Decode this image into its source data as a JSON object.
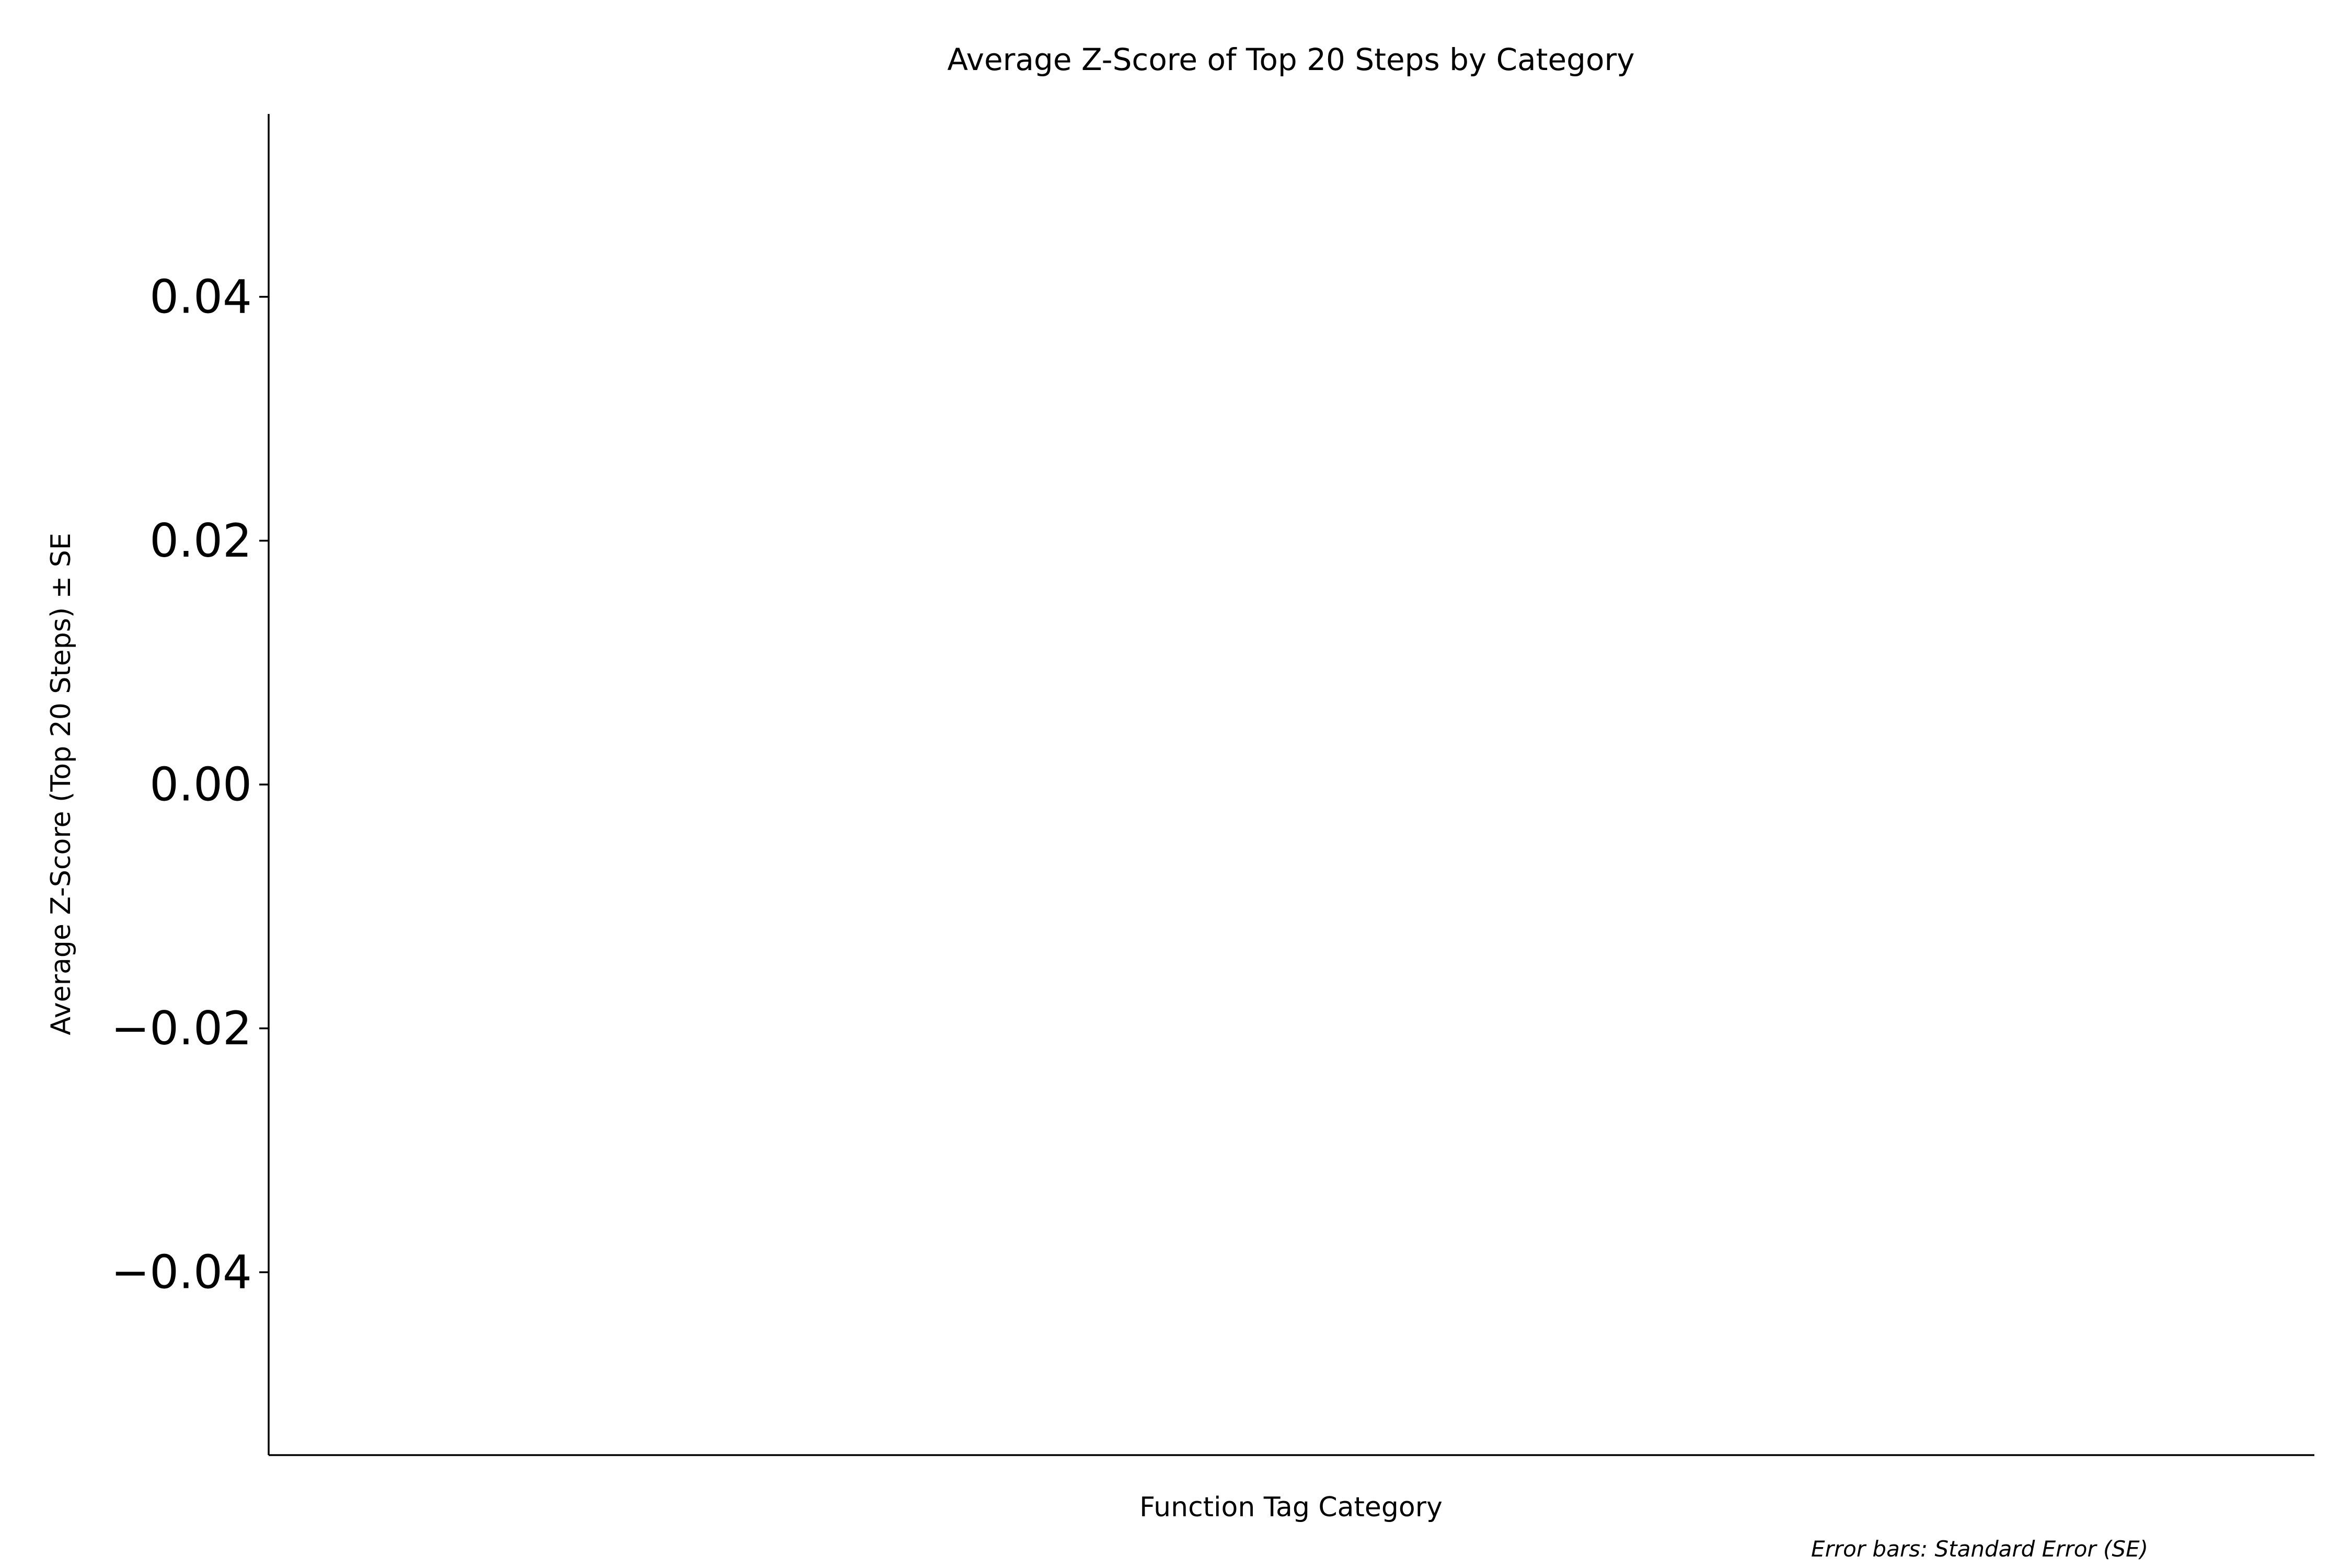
{
  "chart_data": {
    "type": "bar",
    "title": "Average Z-Score of Top 20 Steps by Category",
    "xlabel": "Function Tag Category",
    "ylabel": "Average Z-Score (Top 20 Steps) ± SE",
    "categories": [],
    "values": [],
    "ylim": [
      -0.055,
      0.055
    ],
    "yticks": [
      {
        "value": 0.04,
        "label": "0.04"
      },
      {
        "value": 0.02,
        "label": "0.02"
      },
      {
        "value": 0.0,
        "label": "0.00"
      },
      {
        "value": -0.02,
        "label": "−0.02"
      },
      {
        "value": -0.04,
        "label": "−0.04"
      }
    ],
    "grid": false,
    "annotation": "Error bars: Standard Error (SE)"
  }
}
